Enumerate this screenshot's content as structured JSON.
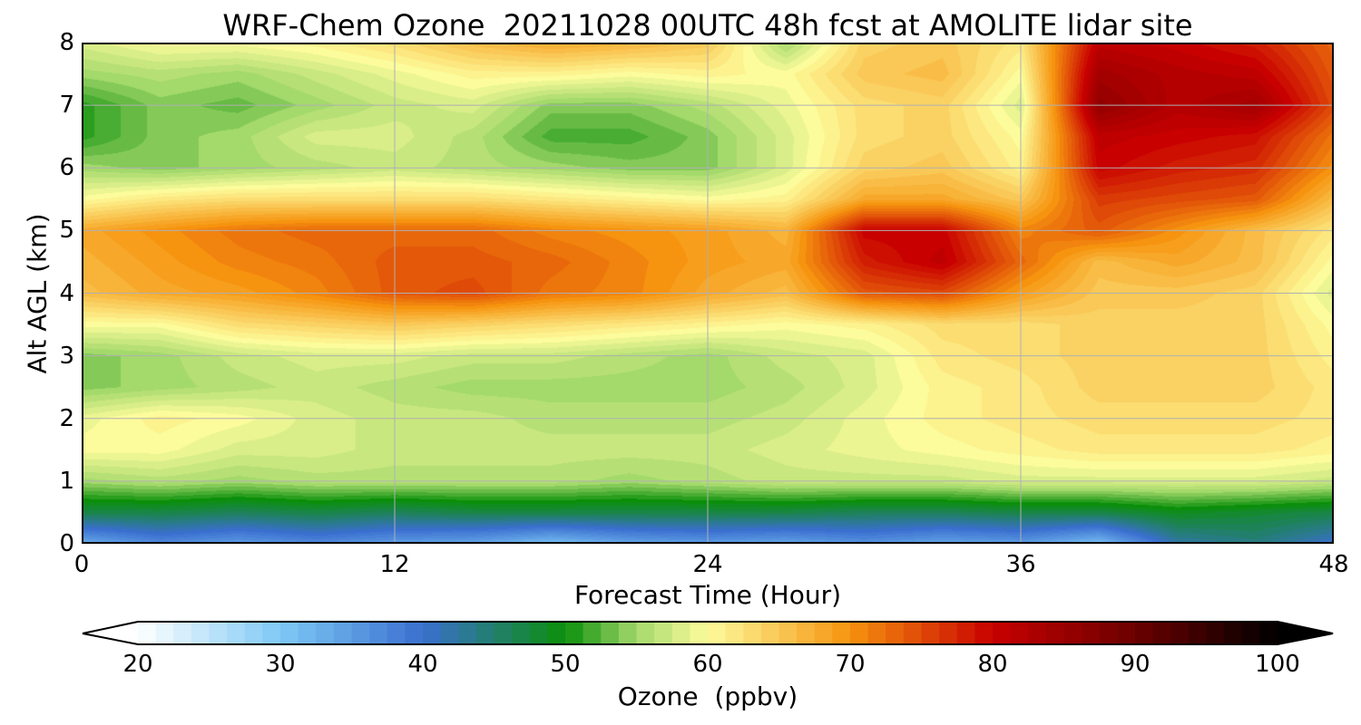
{
  "chart_data": {
    "type": "heatmap",
    "title": "WRF-Chem Ozone  20211028 00UTC 48h fcst at AMOLITE lidar site",
    "xlabel": "Forecast Time (Hour)",
    "ylabel": "Alt AGL (km)",
    "xlim": [
      0,
      48
    ],
    "ylim": [
      0,
      8
    ],
    "xticks": [
      "0",
      "12",
      "24",
      "36",
      "48"
    ],
    "yticks": [
      "0",
      "1",
      "2",
      "3",
      "4",
      "5",
      "6",
      "7",
      "8"
    ],
    "grid": true,
    "x": [
      0,
      3,
      6,
      9,
      12,
      15,
      18,
      21,
      24,
      27,
      30,
      33,
      36,
      39,
      42,
      45,
      48
    ],
    "y": [
      0,
      0.5,
      1,
      1.5,
      2,
      2.5,
      3,
      3.5,
      4,
      4.5,
      5,
      5.5,
      6,
      6.5,
      7,
      7.5,
      8
    ],
    "z": [
      [
        33,
        37,
        35,
        37,
        35,
        34,
        31,
        34,
        35,
        34,
        36,
        34,
        35,
        31,
        42,
        44,
        40
      ],
      [
        47,
        47,
        46,
        47,
        46,
        47,
        47,
        47,
        47,
        47,
        46,
        46,
        47,
        47,
        49,
        48,
        47
      ],
      [
        55,
        56,
        55,
        56,
        56,
        56,
        56,
        55,
        56,
        57,
        57,
        57,
        58,
        58,
        58,
        58,
        57
      ],
      [
        60,
        60,
        58,
        58,
        57,
        57,
        57,
        57,
        57,
        58,
        59,
        60,
        61,
        62,
        62,
        62,
        61
      ],
      [
        59,
        61,
        60,
        58,
        57,
        57,
        56,
        56,
        56,
        57,
        59,
        61,
        62,
        63,
        63,
        63,
        62
      ],
      [
        54,
        55,
        56,
        57,
        56,
        55,
        55,
        55,
        55,
        56,
        58,
        61,
        62,
        64,
        64,
        64,
        62
      ],
      [
        54,
        55,
        57,
        58,
        58,
        57,
        57,
        56,
        55,
        57,
        58,
        62,
        63,
        64,
        64,
        64,
        61
      ],
      [
        60,
        60,
        63,
        64,
        65,
        64,
        63,
        62,
        61,
        60,
        61,
        63,
        63,
        64,
        64,
        64,
        60
      ],
      [
        66,
        68,
        69,
        71,
        74,
        75,
        72,
        71,
        68,
        66,
        74,
        75,
        69,
        65,
        65,
        64,
        58
      ],
      [
        67,
        69,
        71,
        72,
        74,
        74,
        73,
        71,
        69,
        68,
        78,
        81,
        73,
        66,
        68,
        66,
        60
      ],
      [
        68,
        70,
        72,
        73,
        73,
        73,
        71,
        70,
        69,
        67,
        80,
        80,
        71,
        74,
        70,
        66,
        62
      ],
      [
        60,
        62,
        63,
        63,
        63,
        63,
        62,
        61,
        60,
        61,
        68,
        68,
        65,
        76,
        75,
        74,
        66
      ],
      [
        55,
        54,
        55,
        56,
        57,
        56,
        55,
        54,
        54,
        58,
        64,
        65,
        61,
        80,
        78,
        77,
        70
      ],
      [
        51,
        54,
        55,
        58,
        58,
        56,
        52,
        52,
        54,
        58,
        63,
        64,
        60,
        81,
        80,
        79,
        72
      ],
      [
        51,
        54,
        53,
        55,
        57,
        58,
        54,
        54,
        56,
        59,
        63,
        64,
        58,
        86,
        82,
        84,
        75
      ],
      [
        55,
        56,
        55,
        57,
        59,
        61,
        61,
        60,
        61,
        60,
        65,
        66,
        60,
        84,
        82,
        81,
        74
      ],
      [
        58,
        60,
        60,
        61,
        63,
        66,
        68,
        67,
        65,
        55,
        64,
        65,
        62,
        81,
        80,
        78,
        73
      ]
    ],
    "colorbar": {
      "label": "Ozone  (ppbv)",
      "range": [
        20,
        100
      ],
      "ticks": [
        "20",
        "30",
        "40",
        "50",
        "60",
        "70",
        "80",
        "90",
        "100"
      ],
      "extend": "both",
      "stops": [
        {
          "v": 20,
          "color": "#ffffff"
        },
        {
          "v": 30,
          "color": "#7ec9f5"
        },
        {
          "v": 40,
          "color": "#3a6fcf"
        },
        {
          "v": 50,
          "color": "#0b8f0b"
        },
        {
          "v": 55,
          "color": "#a4d96c"
        },
        {
          "v": 60,
          "color": "#fdfc9c"
        },
        {
          "v": 70,
          "color": "#f6930f"
        },
        {
          "v": 80,
          "color": "#c80000"
        },
        {
          "v": 90,
          "color": "#6b0000"
        },
        {
          "v": 100,
          "color": "#000000"
        }
      ]
    }
  }
}
